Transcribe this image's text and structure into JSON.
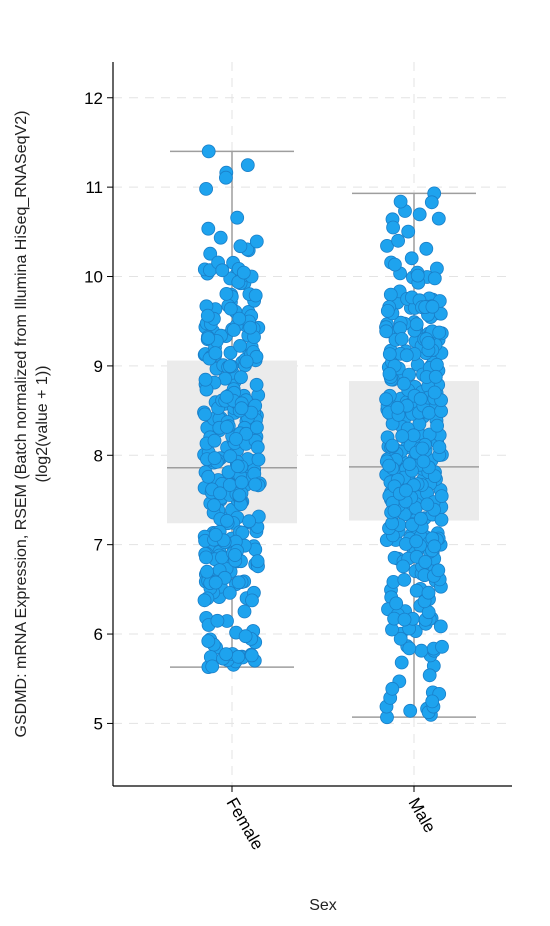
{
  "chart_data": {
    "type": "box",
    "xlabel": "Sex",
    "ylabel_lines": [
      "GSDMD: mRNA Expression, RSEM (Batch normalized from Illumina HiSeq_RNASeqV2)",
      "(log2(value + 1))"
    ],
    "ylim": [
      4.3,
      12.4
    ],
    "yticks": [
      "5",
      "6",
      "7",
      "8",
      "9",
      "10",
      "11",
      "12"
    ],
    "grid": true,
    "point_color": "#1ea3ee",
    "point_stroke": "#1a7fc8",
    "box_color": "#ebebeb",
    "whisker_color": "#9e9e9e",
    "categories": [
      "Female",
      "Male"
    ],
    "series": [
      {
        "category": "Female",
        "box": {
          "q1": 7.24,
          "median": 7.86,
          "q3": 9.06,
          "whisker_low": 5.63,
          "whisker_high": 11.4
        },
        "points": 330
      },
      {
        "category": "Male",
        "box": {
          "q1": 7.27,
          "median": 7.87,
          "q3": 8.83,
          "whisker_low": 5.07,
          "whisker_high": 10.93
        },
        "points": 400
      }
    ]
  }
}
